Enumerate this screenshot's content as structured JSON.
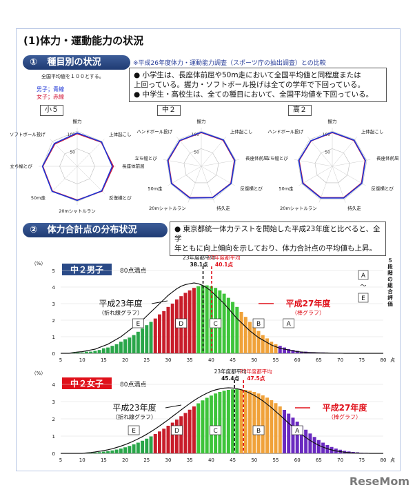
{
  "title": "(1)体力・運動能力の状況",
  "section1": {
    "number": "①",
    "label": "種目別の状況",
    "note": "※平成26年度体力・運動能力調査（スポーツ庁の抽出調査）との比較",
    "avg_note": "全国平均値を１００とする。",
    "legend_male": "男子；青線",
    "legend_female": "女子；赤線",
    "bullets": [
      "●  小学生は、長座体前屈や50m走において全国平均値と同程度または",
      "    上回っている。握力・ソフトボール投げは全ての学年で下回っている。",
      "●  中学生・高校生は、全ての種目において、全国平均値を下回っている。"
    ]
  },
  "radars": [
    {
      "grade": "小５",
      "axes": [
        "握力",
        "上体起こし",
        "長座体前屈",
        "反復横とび",
        "20mシャトルラン",
        "50m走",
        "立ち幅とび",
        "ソフトボール投げ"
      ],
      "ticks": [
        "100",
        "50"
      ],
      "male": [
        95,
        98,
        100,
        99,
        97,
        101,
        99,
        92
      ],
      "female": [
        93,
        97,
        103,
        100,
        96,
        100,
        98,
        90
      ]
    },
    {
      "grade": "中２",
      "axes": [
        "握力",
        "上体起こし",
        "長座体前屈",
        "反復横とび",
        "持久走",
        "20mシャトルラン",
        "50m走",
        "立ち幅とび",
        "ハンドボール投げ"
      ],
      "ticks": [
        "100",
        "50"
      ],
      "male": [
        97,
        98,
        97,
        98,
        95,
        96,
        98,
        97,
        96
      ],
      "female": [
        96,
        97,
        96,
        97,
        94,
        95,
        97,
        96,
        95
      ]
    },
    {
      "grade": "高２",
      "axes": [
        "握力",
        "上体起こし",
        "長座体前屈",
        "反復横とび",
        "持久走",
        "20mシャトルラン",
        "50m走",
        "立ち幅とび",
        "ハンドボール投げ"
      ],
      "ticks": [
        "100",
        "50"
      ],
      "male": [
        97,
        97,
        96,
        97,
        96,
        96,
        97,
        97,
        95
      ],
      "female": [
        96,
        96,
        95,
        96,
        95,
        95,
        96,
        96,
        94
      ]
    }
  ],
  "section2": {
    "number": "②",
    "label": "体力合計点の分布状況",
    "bullets": [
      "●  東京都統一体力テストを開始した平成23年度と比べると、全学",
      "    年ともに向上傾向を示しており、体力合計点の平均値も上昇。"
    ]
  },
  "eval_label": [
    "５",
    "段",
    "階",
    "の",
    "総",
    "合",
    "評",
    "価"
  ],
  "eval_box_top": "A",
  "eval_box_mid": "～",
  "eval_box_bottom": "E",
  "colors": {
    "E": "#2aa64a",
    "D": "#c81d2a",
    "C": "#3ec43a",
    "B": "#f0a23a",
    "A": "#6a2ac0",
    "header": "#2a4a87",
    "red": "#e0101a"
  },
  "chart_data": [
    {
      "type": "bar",
      "panel_title": "中２男子",
      "max_note": "80点満点",
      "unit_y": "（%）",
      "unit_x": "点",
      "xlim": [
        5,
        80
      ],
      "ylim": [
        0,
        5
      ],
      "x_ticks": [
        "5",
        "10",
        "15",
        "20",
        "25",
        "30",
        "35",
        "40",
        "45",
        "50",
        "55",
        "60",
        "65",
        "70",
        "75",
        "80"
      ],
      "y_ticks": [
        "0",
        "1",
        "2",
        "3",
        "4",
        "5"
      ],
      "avg23_label": "23年度都平均",
      "avg23_value": "38.1点",
      "avg23": 38.1,
      "avg27_label": "27年度都平均",
      "avg27_value": "40.1点",
      "avg27": 40.1,
      "line_label": "平成23年度",
      "line_sub": "（折れ線グラフ）",
      "bar_label": "平成27年度",
      "bar_sub": "（棒グラフ）",
      "grades": [
        {
          "g": "E",
          "from": 5,
          "to": 26
        },
        {
          "g": "D",
          "from": 27,
          "to": 36
        },
        {
          "g": "C",
          "from": 37,
          "to": 46
        },
        {
          "g": "B",
          "from": 47,
          "to": 55
        },
        {
          "g": "A",
          "from": 56,
          "to": 80
        }
      ],
      "grade_label_x": {
        "E": 23,
        "D": 33,
        "C": 41,
        "B": 51,
        "A": 58
      },
      "bars": [
        0,
        0,
        0,
        0.05,
        0.05,
        0.05,
        0.1,
        0.1,
        0.15,
        0.2,
        0.3,
        0.35,
        0.45,
        0.55,
        0.7,
        0.85,
        0.95,
        1.1,
        1.3,
        1.5,
        1.7,
        1.9,
        2.1,
        2.35,
        2.55,
        2.8,
        3.0,
        3.25,
        3.45,
        3.65,
        3.8,
        3.95,
        4.05,
        4.1,
        4.1,
        4.05,
        3.95,
        3.8,
        3.6,
        3.35,
        3.1,
        2.8,
        2.5,
        2.2,
        1.9,
        1.6,
        1.35,
        1.1,
        0.9,
        0.7,
        0.55,
        0.45,
        0.35,
        0.25,
        0.2,
        0.15,
        0.1,
        0.1,
        0.05,
        0.05,
        0.05,
        0.05,
        0.03,
        0.03,
        0.02,
        0.02,
        0.01,
        0.01,
        0.01,
        0.01,
        0.01,
        0,
        0,
        0,
        0,
        0
      ],
      "line": [
        0,
        0,
        0,
        0.05,
        0.08,
        0.1,
        0.15,
        0.2,
        0.25,
        0.35,
        0.45,
        0.55,
        0.7,
        0.85,
        1.0,
        1.2,
        1.4,
        1.6,
        1.8,
        2.0,
        2.25,
        2.5,
        2.75,
        3.0,
        3.25,
        3.5,
        3.7,
        3.9,
        4.05,
        4.15,
        4.2,
        4.25,
        4.2,
        4.1,
        3.95,
        3.75,
        3.5,
        3.25,
        3.0,
        2.7,
        2.4,
        2.1,
        1.85,
        1.6,
        1.35,
        1.15,
        0.95,
        0.8,
        0.65,
        0.5,
        0.4,
        0.3,
        0.25,
        0.2,
        0.15,
        0.1,
        0.08,
        0.06,
        0.05,
        0.04,
        0.03,
        0.02,
        0.02,
        0.01,
        0.01,
        0.01,
        0,
        0,
        0,
        0,
        0,
        0,
        0,
        0,
        0,
        0
      ]
    },
    {
      "type": "bar",
      "panel_title": "中２女子",
      "max_note": "80点満点",
      "unit_y": "（%）",
      "unit_x": "点",
      "xlim": [
        5,
        80
      ],
      "ylim": [
        0,
        4
      ],
      "x_ticks": [
        "5",
        "10",
        "15",
        "20",
        "25",
        "30",
        "35",
        "40",
        "45",
        "50",
        "55",
        "60",
        "65",
        "70",
        "75",
        "80"
      ],
      "y_ticks": [
        "0",
        "1",
        "2",
        "3",
        "4"
      ],
      "avg23_label": "23年度都平均",
      "avg23_value": "45.4点",
      "avg23": 45.4,
      "avg27_label": "27年度都平均",
      "avg27_value": "47.5点",
      "avg27": 47.5,
      "line_label": "平成23年度",
      "line_sub": "（折れ線グラフ）",
      "bar_label": "平成27年度",
      "bar_sub": "（棒グラフ）",
      "grades": [
        {
          "g": "E",
          "from": 5,
          "to": 26
        },
        {
          "g": "D",
          "from": 27,
          "to": 36
        },
        {
          "g": "C",
          "from": 37,
          "to": 46
        },
        {
          "g": "B",
          "from": 47,
          "to": 56
        },
        {
          "g": "A",
          "from": 57,
          "to": 80
        }
      ],
      "grade_label_x": {
        "E": 22,
        "D": 32,
        "C": 41,
        "B": 51,
        "A": 60
      },
      "bars": [
        0,
        0,
        0,
        0,
        0,
        0,
        0.02,
        0.03,
        0.05,
        0.07,
        0.1,
        0.13,
        0.17,
        0.22,
        0.28,
        0.35,
        0.43,
        0.52,
        0.62,
        0.73,
        0.85,
        0.98,
        1.12,
        1.27,
        1.43,
        1.6,
        1.78,
        1.96,
        2.15,
        2.34,
        2.53,
        2.72,
        2.9,
        3.07,
        3.22,
        3.35,
        3.47,
        3.56,
        3.63,
        3.68,
        3.71,
        3.72,
        3.71,
        3.68,
        3.63,
        3.56,
        3.47,
        3.36,
        3.23,
        3.08,
        2.91,
        2.72,
        2.52,
        2.3,
        2.07,
        1.84,
        1.6,
        1.37,
        1.15,
        0.95,
        0.77,
        0.62,
        0.48,
        0.37,
        0.28,
        0.21,
        0.15,
        0.11,
        0.08,
        0.06,
        0.04,
        0.03,
        0.02,
        0.01,
        0.01,
        0
      ],
      "line": [
        0,
        0,
        0,
        0,
        0,
        0,
        0.03,
        0.05,
        0.08,
        0.12,
        0.16,
        0.21,
        0.27,
        0.34,
        0.42,
        0.51,
        0.61,
        0.72,
        0.84,
        0.97,
        1.11,
        1.26,
        1.42,
        1.59,
        1.77,
        1.95,
        2.14,
        2.33,
        2.52,
        2.71,
        2.89,
        3.06,
        3.22,
        3.36,
        3.49,
        3.6,
        3.68,
        3.74,
        3.78,
        3.8,
        3.79,
        3.75,
        3.69,
        3.6,
        3.49,
        3.36,
        3.21,
        3.04,
        2.85,
        2.65,
        2.43,
        2.21,
        1.98,
        1.75,
        1.53,
        1.31,
        1.11,
        0.92,
        0.75,
        0.6,
        0.47,
        0.36,
        0.27,
        0.2,
        0.14,
        0.1,
        0.07,
        0.05,
        0.03,
        0.02,
        0.01,
        0.01,
        0,
        0,
        0,
        0
      ]
    }
  ],
  "watermark": "ReseMom"
}
